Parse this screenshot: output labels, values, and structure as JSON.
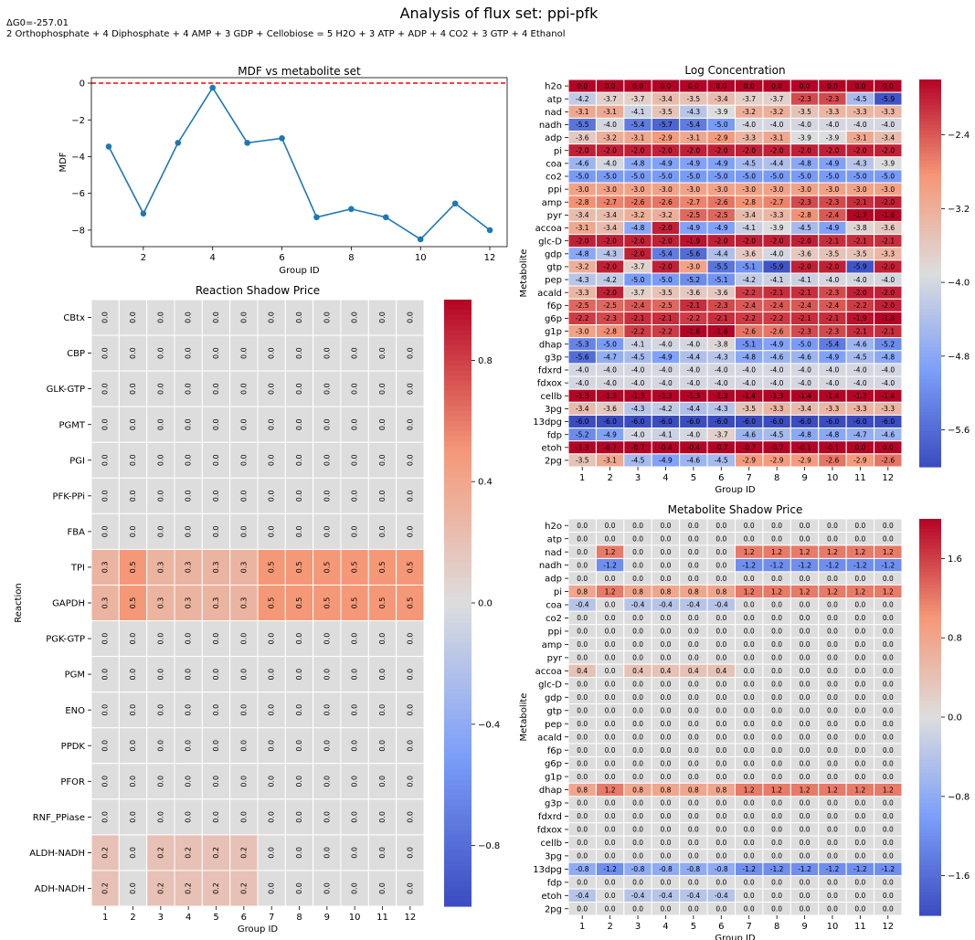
{
  "figure": {
    "title": "Analysis of flux set: ppi-pfk",
    "dg_line": "ΔG0=-257.01",
    "reaction_line": "2 Orthophosphate + 4 Diphosphate + 4 AMP + 3 GDP + Cellobiose = 5 H2O + 3 ATP + ADP + 4 CO2 + 3 GTP + 4 Ethanol"
  },
  "colors": {
    "line": "#1f77b4",
    "ref_line": "#ff0000",
    "cell_border": "#ffffff",
    "colormap": "coolwarm"
  },
  "chart_data": [
    {
      "type": "line",
      "title": "MDF vs metabolite set",
      "xlabel": "Group ID",
      "ylabel": "MDF",
      "x": [
        1,
        2,
        3,
        4,
        5,
        6,
        7,
        8,
        9,
        10,
        11,
        12
      ],
      "y": [
        -3.45,
        -7.1,
        -3.25,
        -0.25,
        -3.25,
        -3.0,
        -7.3,
        -6.85,
        -7.3,
        -8.5,
        -6.55,
        -8.0
      ],
      "reference_line": 0,
      "xlim": [
        0.5,
        12.5
      ],
      "ylim": [
        -8.9,
        0.3
      ],
      "xticks": [
        2,
        4,
        6,
        8,
        10,
        12
      ],
      "yticks": [
        0,
        -2,
        -4,
        -6,
        -8
      ],
      "grid": false
    },
    {
      "type": "heatmap",
      "title": "Log Concentration",
      "xlabel": "Group ID",
      "ylabel": "Metabolite",
      "x": [
        "1",
        "2",
        "3",
        "4",
        "5",
        "6",
        "7",
        "8",
        "9",
        "10",
        "11",
        "12"
      ],
      "y": [
        "h2o",
        "atp",
        "nad",
        "nadh",
        "adp",
        "pi",
        "coa",
        "co2",
        "ppi",
        "amp",
        "pyr",
        "accoa",
        "glc-D",
        "gdp",
        "gtp",
        "pep",
        "acald",
        "f6p",
        "g6p",
        "g1p",
        "dhap",
        "g3p",
        "fdxrd",
        "fdxox",
        "cellb",
        "3pg",
        "13dpg",
        "fdp",
        "etoh",
        "2pg"
      ],
      "values": [
        [
          0.0,
          0.0,
          0.0,
          0.0,
          0.0,
          0.0,
          0.0,
          0.0,
          0.0,
          0.0,
          0.0,
          0.0
        ],
        [
          -4.2,
          -3.7,
          -3.7,
          -3.4,
          -3.5,
          -3.4,
          -3.7,
          -3.7,
          -2.3,
          -2.3,
          -4.5,
          -5.9
        ],
        [
          -3.1,
          -3.1,
          -4.1,
          -3.5,
          -4.3,
          -3.9,
          -3.2,
          -3.2,
          -3.5,
          -3.3,
          -3.3,
          -3.3
        ],
        [
          -5.5,
          -4.0,
          -5.4,
          -5.7,
          -5.4,
          -5.0,
          -4.0,
          -4.0,
          -4.0,
          -4.0,
          -4.0,
          -4.0
        ],
        [
          -3.6,
          -3.2,
          -3.1,
          -2.9,
          -3.1,
          -2.9,
          -3.3,
          -3.1,
          -3.9,
          -3.9,
          -3.1,
          -3.4
        ],
        [
          -2.0,
          -2.0,
          -2.0,
          -2.0,
          -2.0,
          -2.0,
          -2.0,
          -2.0,
          -2.0,
          -2.0,
          -2.0,
          -2.0
        ],
        [
          -4.6,
          -4.0,
          -4.8,
          -4.9,
          -4.9,
          -4.9,
          -4.5,
          -4.4,
          -4.8,
          -4.9,
          -4.3,
          -3.9
        ],
        [
          -5.0,
          -5.0,
          -5.0,
          -5.0,
          -5.0,
          -5.0,
          -5.0,
          -5.0,
          -5.0,
          -5.0,
          -5.0,
          -5.0
        ],
        [
          -3.0,
          -3.0,
          -3.0,
          -3.0,
          -3.0,
          -3.0,
          -3.0,
          -3.0,
          -3.0,
          -3.0,
          -3.0,
          -3.0
        ],
        [
          -2.8,
          -2.7,
          -2.6,
          -2.6,
          -2.7,
          -2.6,
          -2.8,
          -2.7,
          -2.3,
          -2.3,
          -2.1,
          -2.0
        ],
        [
          -3.4,
          -3.4,
          -3.2,
          -3.2,
          -2.5,
          -2.5,
          -3.4,
          -3.3,
          -2.8,
          -2.4,
          -1.7,
          -1.6
        ],
        [
          -3.1,
          -3.4,
          -4.8,
          -2.0,
          -4.9,
          -4.9,
          -4.1,
          -3.9,
          -4.5,
          -4.9,
          -3.8,
          -3.6
        ],
        [
          -2.0,
          -2.0,
          -2.0,
          -2.0,
          -1.9,
          -2.0,
          -2.0,
          -2.0,
          -2.0,
          -2.1,
          -2.1,
          -2.1
        ],
        [
          -4.8,
          -4.3,
          -2.0,
          -5.4,
          -5.6,
          -4.4,
          -3.6,
          -4.0,
          -3.6,
          -3.5,
          -3.5,
          -3.3
        ],
        [
          -3.2,
          -2.0,
          -3.7,
          -2.0,
          -3.0,
          -5.5,
          -5.1,
          -5.9,
          -2.0,
          -2.0,
          -5.9,
          -2.0
        ],
        [
          -4.3,
          -4.2,
          -5.0,
          -5.0,
          -5.2,
          -5.1,
          -4.2,
          -4.1,
          -4.1,
          -4.0,
          -4.0,
          -4.0
        ],
        [
          -3.3,
          -2.0,
          -3.7,
          -3.5,
          -3.6,
          -3.6,
          -2.2,
          -2.1,
          -2.1,
          -2.3,
          -2.0,
          -2.0
        ],
        [
          -2.5,
          -2.5,
          -2.4,
          -2.5,
          -2.1,
          -2.3,
          -2.4,
          -2.4,
          -2.4,
          -2.4,
          -2.2,
          -2.0
        ],
        [
          -2.2,
          -2.3,
          -2.1,
          -2.1,
          -2.2,
          -2.1,
          -2.2,
          -2.2,
          -2.1,
          -2.1,
          -1.9,
          -1.8
        ],
        [
          -3.0,
          -2.8,
          -2.2,
          -2.2,
          -1.6,
          -1.6,
          -2.6,
          -2.6,
          -2.3,
          -2.3,
          -2.1,
          -2.1
        ],
        [
          -5.3,
          -5.0,
          -4.1,
          -4.0,
          -4.0,
          -3.8,
          -5.1,
          -4.9,
          -5.0,
          -5.4,
          -4.6,
          -5.2
        ],
        [
          -5.6,
          -4.7,
          -4.5,
          -4.9,
          -4.4,
          -4.3,
          -4.8,
          -4.6,
          -4.6,
          -4.9,
          -4.5,
          -4.8
        ],
        [
          -4.0,
          -4.0,
          -4.0,
          -4.0,
          -4.0,
          -4.0,
          -4.0,
          -4.0,
          -4.0,
          -4.0,
          -4.0,
          -4.0
        ],
        [
          -4.0,
          -4.0,
          -4.0,
          -4.0,
          -4.0,
          -4.0,
          -4.0,
          -4.0,
          -4.0,
          -4.0,
          -4.0,
          -4.0
        ],
        [
          -1.3,
          -1.3,
          -1.3,
          -1.3,
          -1.3,
          -1.3,
          -1.4,
          -1.3,
          -1.4,
          -1.4,
          -1.3,
          -1.4
        ],
        [
          -3.4,
          -3.6,
          -4.3,
          -4.2,
          -4.4,
          -4.3,
          -3.5,
          -3.3,
          -3.4,
          -3.3,
          -3.3,
          -3.3
        ],
        [
          -6.0,
          -6.0,
          -6.0,
          -6.0,
          -6.0,
          -6.0,
          -6.0,
          -6.0,
          -6.0,
          -6.0,
          -6.0,
          -6.0
        ],
        [
          -5.2,
          -4.9,
          -4.0,
          -4.1,
          -4.0,
          -3.7,
          -4.6,
          -4.5,
          -4.8,
          -4.8,
          -4.7,
          -4.6
        ],
        [
          -1.3,
          -0.7,
          -0.7,
          -0.4,
          -0.4,
          -0.7,
          -0.7,
          -0.7,
          -0.1,
          -0.1,
          0.0,
          0.0
        ],
        [
          -3.5,
          -3.1,
          -4.5,
          -4.9,
          -4.6,
          -4.5,
          -2.9,
          -2.9,
          -2.9,
          -2.6,
          -2.9,
          -2.6
        ]
      ],
      "vmin": -6.0,
      "vmax": -1.8,
      "colorbar_ticks": [
        "-2.4",
        "-3.2",
        "-4.0",
        "-4.8",
        "-5.6"
      ],
      "value_labels": true,
      "label_rotation": "horizontal"
    },
    {
      "type": "heatmap",
      "title": "Reaction Shadow Price",
      "xlabel": "Group ID",
      "ylabel": "Reaction",
      "x": [
        "1",
        "2",
        "3",
        "4",
        "5",
        "6",
        "7",
        "8",
        "9",
        "10",
        "11",
        "12"
      ],
      "y": [
        "CBtx",
        "CBP",
        "GLK-GTP",
        "PGMT",
        "PGI",
        "PFK-PPi",
        "FBA",
        "TPI",
        "GAPDH",
        "PGK-GTP",
        "PGM",
        "ENO",
        "PPDK",
        "PFOR",
        "RNF_PPiase",
        "ALDH-NADH",
        "ADH-NADH"
      ],
      "values": [
        [
          0.0,
          0.0,
          0.0,
          0.0,
          0.0,
          0.0,
          0.0,
          0.0,
          0.0,
          0.0,
          0.0,
          0.0
        ],
        [
          0.0,
          0.0,
          0.0,
          0.0,
          0.0,
          -0.0,
          0.0,
          0.0,
          0.0,
          0.0,
          0.0,
          0.0
        ],
        [
          0.0,
          0.0,
          0.0,
          0.0,
          0.0,
          0.0,
          0.0,
          0.0,
          0.0,
          0.0,
          0.0,
          0.0
        ],
        [
          0.0,
          0.0,
          0.0,
          0.0,
          0.0,
          0.0,
          0.0,
          0.0,
          0.0,
          0.0,
          0.0,
          0.0
        ],
        [
          0.0,
          0.0,
          0.0,
          0.0,
          0.0,
          0.0,
          0.0,
          0.0,
          0.0,
          0.0,
          0.0,
          0.0
        ],
        [
          0.0,
          0.0,
          0.0,
          0.0,
          0.0,
          0.0,
          0.0,
          0.0,
          0.0,
          0.0,
          0.0,
          0.0
        ],
        [
          0.0,
          0.0,
          0.0,
          0.0,
          0.0,
          0.0,
          0.0,
          0.0,
          0.0,
          0.0,
          0.0,
          0.0
        ],
        [
          0.3,
          0.5,
          0.3,
          0.3,
          0.3,
          0.3,
          0.5,
          0.5,
          0.5,
          0.5,
          0.5,
          0.5
        ],
        [
          0.3,
          0.5,
          0.3,
          0.3,
          0.3,
          0.3,
          0.5,
          0.5,
          0.5,
          0.5,
          0.5,
          0.5
        ],
        [
          0.0,
          0.0,
          0.0,
          -0.0,
          0.0,
          0.0,
          0.0,
          0.0,
          0.0,
          0.0,
          0.0,
          0.0
        ],
        [
          0.0,
          0.0,
          0.0,
          0.0,
          0.0,
          0.0,
          0.0,
          0.0,
          0.0,
          0.0,
          0.0,
          0.0
        ],
        [
          0.0,
          0.0,
          0.0,
          0.0,
          0.0,
          0.0,
          0.0,
          0.0,
          0.0,
          0.0,
          0.0,
          0.0
        ],
        [
          0.0,
          0.0,
          0.0,
          0.0,
          -0.0,
          0.0,
          0.0,
          0.0,
          0.0,
          0.0,
          0.0,
          0.0
        ],
        [
          0.0,
          0.0,
          0.0,
          0.0,
          0.0,
          0.0,
          0.0,
          0.0,
          0.0,
          0.0,
          0.0,
          0.0
        ],
        [
          0.0,
          0.0,
          0.0,
          0.0,
          0.0,
          0.0,
          0.0,
          0.0,
          0.0,
          0.0,
          0.0,
          0.0
        ],
        [
          0.2,
          0.0,
          0.2,
          0.2,
          0.2,
          0.2,
          0.0,
          0.0,
          0.0,
          0.0,
          0.0,
          0.0
        ],
        [
          0.2,
          -0.0,
          0.2,
          0.2,
          0.2,
          0.2,
          0.0,
          0.0,
          0.0,
          0.0,
          0.0,
          0.0
        ]
      ],
      "vmin": -1.0,
      "vmax": 1.0,
      "colorbar_ticks": [
        "0.8",
        "0.4",
        "0.0",
        "-0.4",
        "-0.8"
      ],
      "value_labels": true,
      "label_rotation": "vertical"
    },
    {
      "type": "heatmap",
      "title": "Metabolite Shadow Price",
      "xlabel": "Group ID",
      "ylabel": "Metabolite",
      "x": [
        "1",
        "2",
        "3",
        "4",
        "5",
        "6",
        "7",
        "8",
        "9",
        "10",
        "11",
        "12"
      ],
      "y": [
        "h2o",
        "atp",
        "nad",
        "nadh",
        "adp",
        "pi",
        "coa",
        "co2",
        "ppi",
        "amp",
        "pyr",
        "accoa",
        "glc-D",
        "gdp",
        "gtp",
        "pep",
        "acald",
        "f6p",
        "g6p",
        "g1p",
        "dhap",
        "g3p",
        "fdxrd",
        "fdxox",
        "cellb",
        "3pg",
        "13dpg",
        "fdp",
        "etoh",
        "2pg"
      ],
      "values": [
        [
          -0.0,
          -0.0,
          0.0,
          -0.0,
          0.0,
          -0.0,
          0.0,
          -0.0,
          0.0,
          0.0,
          -0.0,
          -0.0
        ],
        [
          0.0,
          0.0,
          0.0,
          0.0,
          0.0,
          -0.0,
          0.0,
          0.0,
          0.0,
          0.0,
          0.0,
          0.0
        ],
        [
          -0.0,
          1.2,
          0.0,
          0.0,
          0.0,
          0.0,
          1.2,
          1.2,
          1.2,
          1.2,
          1.2,
          1.2
        ],
        [
          0.0,
          -1.2,
          0.0,
          0.0,
          0.0,
          0.0,
          -1.2,
          -1.2,
          -1.2,
          -1.2,
          -1.2,
          -1.2
        ],
        [
          0.0,
          -0.0,
          0.0,
          -0.0,
          0.0,
          -0.0,
          0.0,
          0.0,
          0.0,
          0.0,
          0.0,
          0.0
        ],
        [
          0.8,
          1.2,
          0.8,
          0.8,
          0.8,
          0.8,
          1.2,
          1.2,
          1.2,
          1.2,
          1.2,
          1.2
        ],
        [
          -0.4,
          0.0,
          -0.4,
          -0.4,
          -0.4,
          -0.4,
          0.0,
          0.0,
          0.0,
          0.0,
          0.0,
          0.0
        ],
        [
          -0.0,
          -0.0,
          -0.0,
          -0.0,
          -0.0,
          -0.0,
          -0.0,
          -0.0,
          -0.0,
          -0.0,
          -0.0,
          -0.0
        ],
        [
          -0.0,
          -0.0,
          0.0,
          -0.0,
          -0.0,
          -0.0,
          -0.0,
          0.0,
          -0.0,
          -0.0,
          -0.0,
          -0.0
        ],
        [
          -0.0,
          -0.0,
          -0.0,
          -0.0,
          -0.0,
          -0.0,
          -0.0,
          -0.0,
          -0.0,
          -0.0,
          -0.0,
          -0.0
        ],
        [
          0.0,
          0.0,
          -0.0,
          0.0,
          0.0,
          0.0,
          0.0,
          -0.0,
          0.0,
          0.0,
          0.0,
          -0.0
        ],
        [
          0.4,
          -0.0,
          0.4,
          0.4,
          0.4,
          0.4,
          -0.0,
          0.0,
          0.0,
          0.0,
          0.0,
          0.0
        ],
        [
          -0.0,
          0.0,
          0.0,
          -0.0,
          0.0,
          0.0,
          0.0,
          0.0,
          0.0,
          0.0,
          0.0,
          0.0
        ],
        [
          0.0,
          0.0,
          0.0,
          0.0,
          0.0,
          0.0,
          0.0,
          0.0,
          0.0,
          0.0,
          0.0,
          0.0
        ],
        [
          0.0,
          0.0,
          0.0,
          0.0,
          0.0,
          0.0,
          0.0,
          0.0,
          -0.0,
          0.0,
          0.0,
          0.0
        ],
        [
          0.0,
          0.0,
          0.0,
          0.0,
          0.0,
          -0.0,
          0.0,
          0.0,
          0.0,
          0.0,
          0.0,
          0.0
        ],
        [
          0.0,
          0.0,
          0.0,
          0.0,
          0.0,
          0.0,
          0.0,
          0.0,
          0.0,
          0.0,
          0.0,
          0.0
        ],
        [
          0.0,
          0.0,
          0.0,
          0.0,
          0.0,
          0.0,
          0.0,
          0.0,
          0.0,
          0.0,
          0.0,
          0.0
        ],
        [
          0.0,
          0.0,
          0.0,
          0.0,
          0.0,
          0.0,
          0.0,
          0.0,
          0.0,
          0.0,
          0.0,
          -0.0
        ],
        [
          0.0,
          0.0,
          -0.0,
          0.0,
          0.0,
          0.0,
          0.0,
          0.0,
          0.0,
          0.0,
          0.0,
          0.0
        ],
        [
          0.8,
          1.2,
          0.8,
          0.8,
          0.8,
          0.8,
          1.2,
          1.2,
          1.2,
          1.2,
          1.2,
          1.2
        ],
        [
          0.0,
          0.0,
          0.0,
          0.0,
          0.0,
          0.0,
          0.0,
          0.0,
          0.0,
          0.0,
          0.0,
          0.0
        ],
        [
          0.0,
          0.0,
          0.0,
          -0.0,
          0.0,
          -0.0,
          0.0,
          0.0,
          0.0,
          0.0,
          0.0,
          0.0
        ],
        [
          0.0,
          0.0,
          0.0,
          -0.0,
          0.0,
          0.0,
          0.0,
          0.0,
          0.0,
          0.0,
          0.0,
          0.0
        ],
        [
          0.0,
          0.0,
          0.0,
          0.0,
          -0.0,
          0.0,
          0.0,
          0.0,
          0.0,
          0.0,
          0.0,
          0.0
        ],
        [
          -0.0,
          0.0,
          0.0,
          0.0,
          0.0,
          0.0,
          0.0,
          0.0,
          0.0,
          0.0,
          0.0,
          0.0
        ],
        [
          -0.8,
          -1.2,
          -0.8,
          -0.8,
          -0.8,
          -0.8,
          -1.2,
          -1.2,
          -1.2,
          -1.2,
          -1.2,
          -1.2
        ],
        [
          0.0,
          -0.0,
          0.0,
          0.0,
          0.0,
          0.0,
          0.0,
          0.0,
          0.0,
          0.0,
          0.0,
          -0.0
        ],
        [
          -0.4,
          0.0,
          -0.4,
          -0.4,
          -0.4,
          -0.4,
          0.0,
          0.0,
          0.0,
          0.0,
          0.0,
          0.0
        ],
        [
          0.0,
          0.0,
          0.0,
          0.0,
          0.0,
          0.0,
          0.0,
          0.0,
          0.0,
          0.0,
          0.0,
          -0.0
        ]
      ],
      "vmin": -2.0,
      "vmax": 2.0,
      "colorbar_ticks": [
        "1.6",
        "0.8",
        "0.0",
        "-0.8",
        "-1.6"
      ],
      "value_labels": true,
      "label_rotation": "horizontal"
    }
  ]
}
